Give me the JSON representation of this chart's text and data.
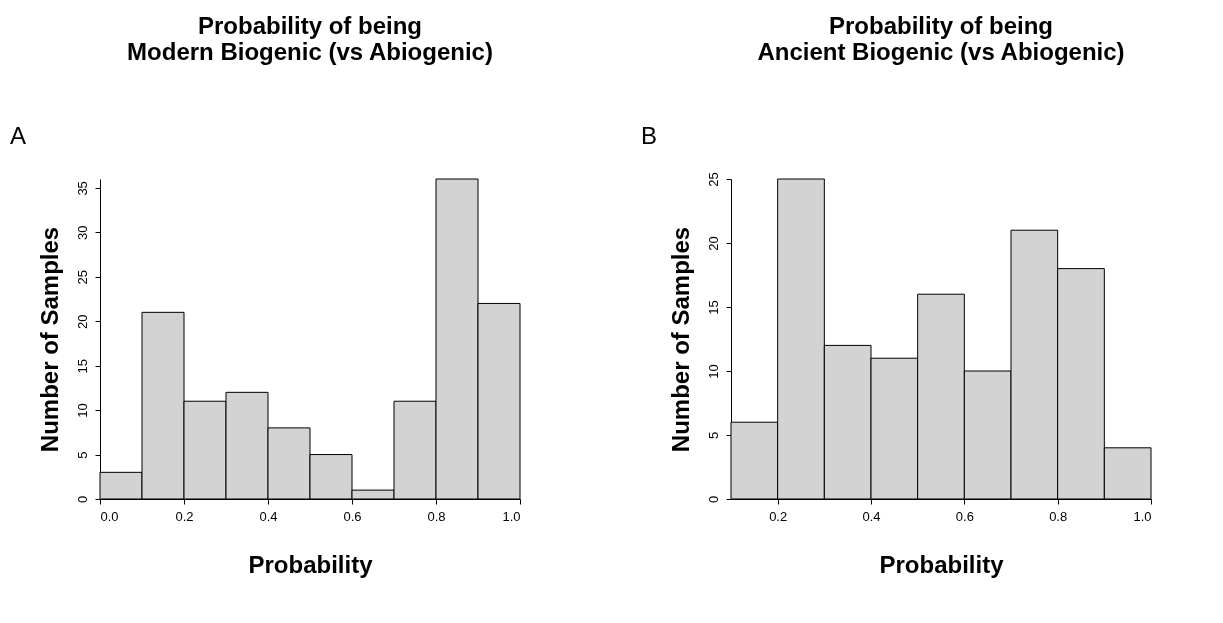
{
  "chart_data": [
    {
      "type": "histogram",
      "title": "Probability of being\nModern Biogenic (vs Abiogenic)",
      "xlabel": "Probability",
      "ylabel": "Number of Samples",
      "annotations": [
        "A"
      ],
      "bins": [
        0.0,
        0.1,
        0.2,
        0.3,
        0.4,
        0.5,
        0.6,
        0.7,
        0.8,
        0.9,
        1.0
      ],
      "values": [
        3,
        21,
        11,
        12,
        8,
        5,
        1,
        11,
        36,
        22
      ],
      "color": "#d3d3d3",
      "xlim": [
        0.0,
        1.0
      ],
      "ylim": [
        0,
        36
      ],
      "xticks": [
        {
          "value": 0.0,
          "label": "0.0"
        },
        {
          "value": 0.2,
          "label": "0.2"
        },
        {
          "value": 0.4,
          "label": "0.4"
        },
        {
          "value": 0.6,
          "label": "0.6"
        },
        {
          "value": 0.8,
          "label": "0.8"
        },
        {
          "value": 1.0,
          "label": "1.0"
        }
      ],
      "yticks": [
        0,
        5,
        10,
        15,
        20,
        25,
        30,
        35
      ],
      "grid": false
    },
    {
      "type": "histogram",
      "title": "Probability of being\nAncient Biogenic (vs Abiogenic)",
      "xlabel": "Probability",
      "ylabel": "Number of Samples",
      "annotations": [
        "B"
      ],
      "bins": [
        0.1,
        0.2,
        0.3,
        0.4,
        0.5,
        0.6,
        0.7,
        0.8,
        0.9,
        1.0
      ],
      "values": [
        6,
        25,
        12,
        11,
        16,
        10,
        21,
        18,
        4
      ],
      "color": "#d3d3d3",
      "xlim": [
        0.1,
        1.0
      ],
      "ylim": [
        0,
        25
      ],
      "xticks": [
        {
          "value": 0.2,
          "label": "0.2"
        },
        {
          "value": 0.4,
          "label": "0.4"
        },
        {
          "value": 0.6,
          "label": "0.6"
        },
        {
          "value": 0.8,
          "label": "0.8"
        },
        {
          "value": 1.0,
          "label": "1.0"
        }
      ],
      "yticks": [
        0,
        5,
        10,
        15,
        20,
        25
      ],
      "grid": false
    }
  ]
}
